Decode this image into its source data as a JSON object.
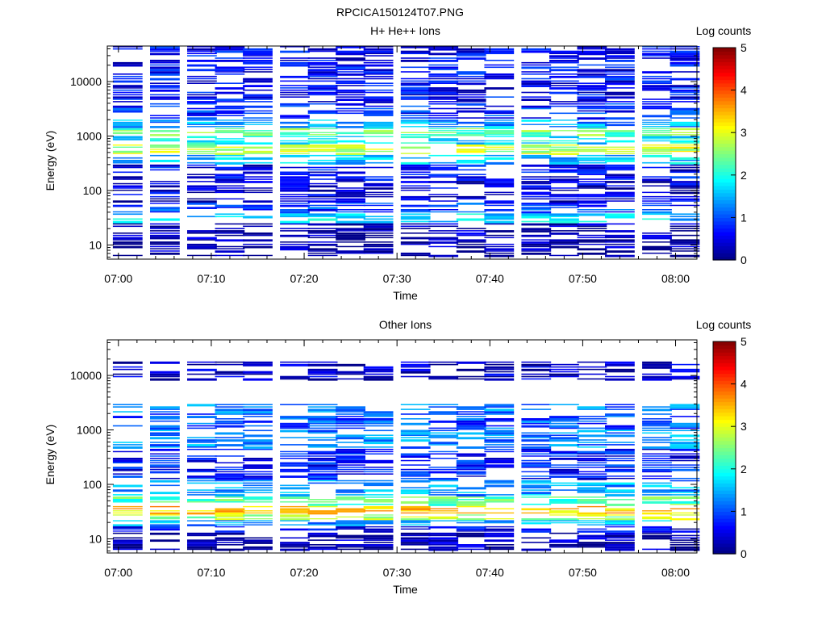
{
  "figure": {
    "title": "RPCICA150124T07.PNG"
  },
  "chart_data": [
    {
      "type": "heatmap",
      "title": "H+ He++ Ions",
      "xlabel": "Time",
      "ylabel": "Energy (eV)",
      "x_ticks": [
        "07:00",
        "07:10",
        "07:20",
        "07:30",
        "07:40",
        "07:50",
        "08:00"
      ],
      "y_ticks": [
        "10",
        "100",
        "1000",
        "10000"
      ],
      "y_scale": "log",
      "ylim": [
        5.5,
        45000
      ],
      "colorbar": {
        "label": "Log counts",
        "ticks": [
          "0",
          "1",
          "2",
          "3",
          "4",
          "5"
        ],
        "range": [
          0,
          5
        ]
      },
      "time_bins": [
        "07:01",
        "07:05",
        "07:09",
        "07:12",
        "07:15",
        "07:19",
        "07:22",
        "07:25",
        "07:28",
        "07:32",
        "07:35",
        "07:38",
        "07:41",
        "07:45",
        "07:48",
        "07:51",
        "07:54",
        "07:58",
        "08:01"
      ],
      "spectra": [
        {
          "band": [
            4000,
            45000
          ],
          "value": 0.6
        },
        {
          "band": [
            2000,
            4000
          ],
          "value": 0.8
        },
        {
          "band": [
            1400,
            2000
          ],
          "value": 1.4
        },
        {
          "band": [
            1000,
            1400
          ],
          "value": 2.4
        },
        {
          "band": [
            700,
            1000
          ],
          "value": 1.8
        },
        {
          "band": [
            450,
            700
          ],
          "value": 2.8
        },
        {
          "band": [
            300,
            450
          ],
          "value": 1.6
        },
        {
          "band": [
            150,
            300
          ],
          "value": 0.6
        },
        {
          "band": [
            60,
            150
          ],
          "value": 0.4
        },
        {
          "band": [
            38,
            60
          ],
          "value": 0.9
        },
        {
          "band": [
            25,
            38
          ],
          "value": 1.7
        },
        {
          "band": [
            14,
            25
          ],
          "value": 0.2
        },
        {
          "band": [
            6,
            14
          ],
          "value": 0.2
        }
      ]
    },
    {
      "type": "heatmap",
      "title": "Other Ions",
      "xlabel": "Time",
      "ylabel": "Energy (eV)",
      "x_ticks": [
        "07:00",
        "07:10",
        "07:20",
        "07:30",
        "07:40",
        "07:50",
        "08:00"
      ],
      "y_ticks": [
        "10",
        "100",
        "1000",
        "10000"
      ],
      "y_scale": "log",
      "ylim": [
        5.5,
        45000
      ],
      "colorbar": {
        "label": "Log counts",
        "ticks": [
          "0",
          "1",
          "2",
          "3",
          "4",
          "5"
        ],
        "range": [
          0,
          5
        ]
      },
      "time_bins": [
        "07:01",
        "07:05",
        "07:09",
        "07:12",
        "07:15",
        "07:19",
        "07:22",
        "07:25",
        "07:28",
        "07:32",
        "07:35",
        "07:38",
        "07:41",
        "07:45",
        "07:48",
        "07:51",
        "07:54",
        "07:58",
        "08:01"
      ],
      "spectra": [
        {
          "band": [
            8000,
            18000
          ],
          "value": 0.3
        },
        {
          "band": [
            2000,
            3000
          ],
          "value": 1.2
        },
        {
          "band": [
            1000,
            2000
          ],
          "value": 1.0
        },
        {
          "band": [
            450,
            1000
          ],
          "value": 1.3
        },
        {
          "band": [
            120,
            450
          ],
          "value": 0.7
        },
        {
          "band": [
            60,
            120
          ],
          "value": 1.4
        },
        {
          "band": [
            40,
            60
          ],
          "value": 2.3
        },
        {
          "band": [
            28,
            40
          ],
          "value": 3.4
        },
        {
          "band": [
            22,
            28
          ],
          "value": 2.7
        },
        {
          "band": [
            17,
            22
          ],
          "value": 1.4
        },
        {
          "band": [
            13,
            17
          ],
          "value": 0.5
        },
        {
          "band": [
            6,
            13
          ],
          "value": 0.2
        }
      ]
    }
  ]
}
